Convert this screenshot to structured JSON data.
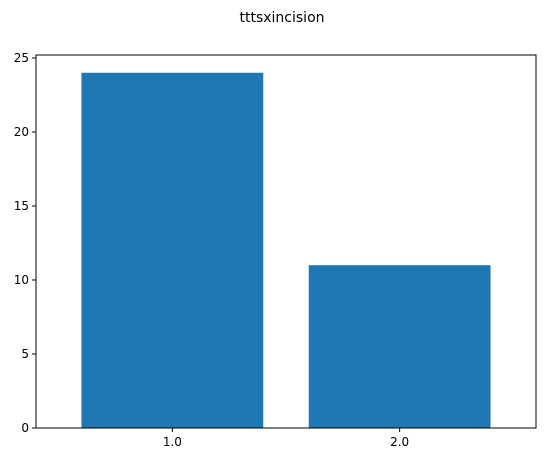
{
  "chart_data": {
    "type": "bar",
    "title": "tttsxincision",
    "xlabel": "",
    "ylabel": "",
    "categories": [
      "1.0",
      "2.0"
    ],
    "values": [
      24,
      11
    ],
    "ylim": [
      0,
      25.2
    ],
    "yticks": [
      0,
      5,
      10,
      15,
      20,
      25
    ],
    "grid": false,
    "bar_color": "#1f77b4"
  }
}
